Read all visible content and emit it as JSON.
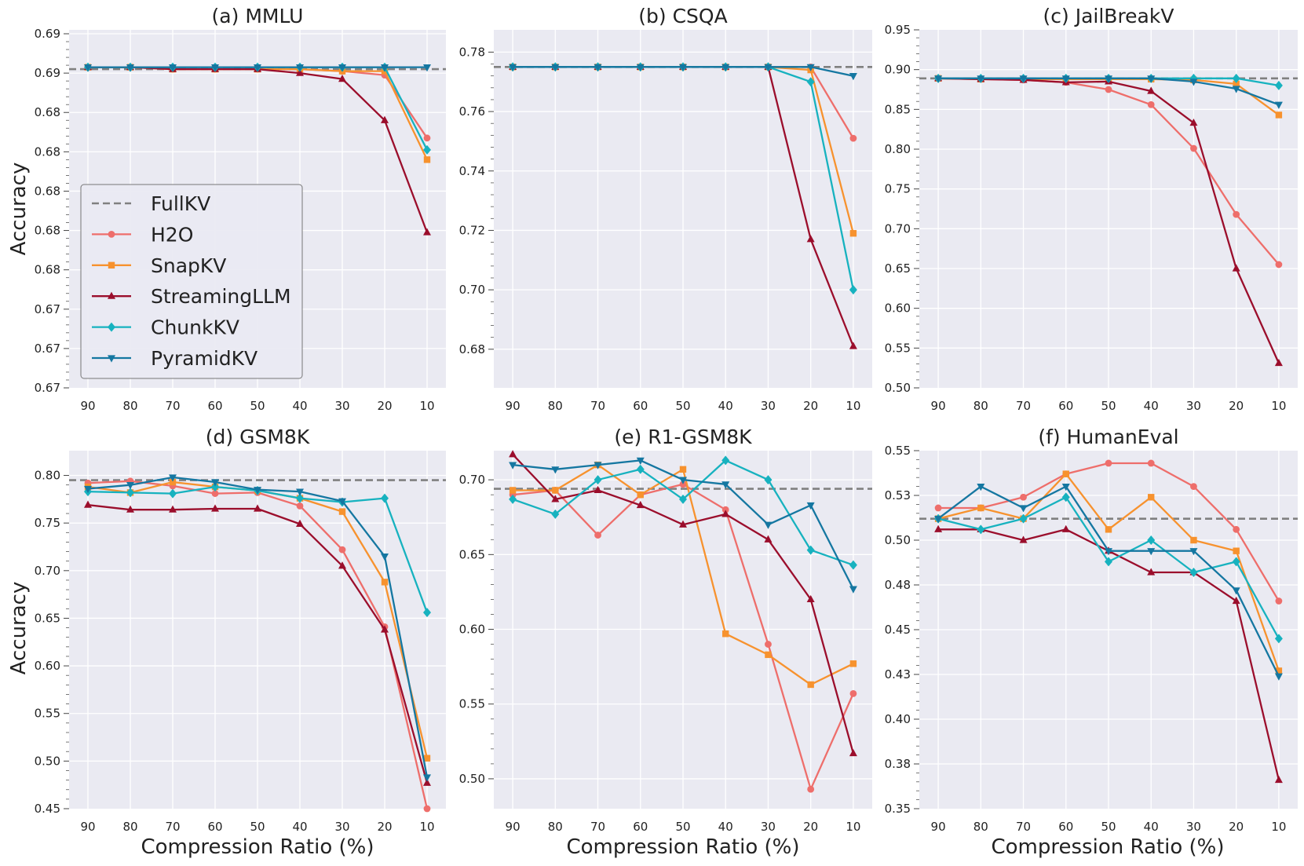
{
  "figure": {
    "ylabel": "Accuracy",
    "xlabel": "Compression Ratio (%)",
    "legend": {
      "location": "lower-left of panel (a)",
      "entries": [
        {
          "name": "FullKV",
          "color": "#808080",
          "marker": "none",
          "style": "dashed"
        },
        {
          "name": "H2O",
          "color": "#EE6E6B",
          "marker": "circle"
        },
        {
          "name": "SnapKV",
          "color": "#F7922E",
          "marker": "square"
        },
        {
          "name": "StreamingLLM",
          "color": "#9B0E2C",
          "marker": "triangle-up"
        },
        {
          "name": "ChunkKV",
          "color": "#17B2BF",
          "marker": "diamond"
        },
        {
          "name": "PyramidKV",
          "color": "#1577A1",
          "marker": "triangle-down"
        }
      ]
    },
    "background": "#EAEAF2"
  },
  "chart_data": [
    {
      "type": "line",
      "title": "(a) MMLU",
      "categories": [
        "90",
        "80",
        "70",
        "60",
        "50",
        "40",
        "30",
        "20",
        "10"
      ],
      "yticks": [
        0.67,
        0.672,
        0.674,
        0.676,
        0.678,
        0.68,
        0.682,
        0.684,
        0.686,
        0.688
      ],
      "ytick_labels": [
        "0.67",
        "0.67",
        "0.67",
        "0.68",
        "0.68",
        "0.68",
        "0.68",
        "0.68",
        "0.69",
        "0.69"
      ],
      "ylim": [
        0.67,
        0.6882
      ],
      "fullkv": 0.6862,
      "series": [
        {
          "name": "H2O",
          "values": [
            0.6863,
            0.6863,
            0.6862,
            0.6862,
            0.6862,
            0.6862,
            0.6861,
            0.6859,
            0.6827
          ]
        },
        {
          "name": "SnapKV",
          "values": [
            0.6863,
            0.6863,
            0.6862,
            0.6862,
            0.6862,
            0.6862,
            0.6861,
            0.6861,
            0.6816
          ]
        },
        {
          "name": "StreamingLLM",
          "values": [
            0.6863,
            0.6863,
            0.6862,
            0.6862,
            0.6862,
            0.686,
            0.6857,
            0.6836,
            0.6779
          ]
        },
        {
          "name": "ChunkKV",
          "values": [
            0.6863,
            0.6863,
            0.6863,
            0.6863,
            0.6863,
            0.6863,
            0.6863,
            0.6863,
            0.6821
          ]
        },
        {
          "name": "PyramidKV",
          "values": [
            0.6863,
            0.6863,
            0.6863,
            0.6863,
            0.6863,
            0.6863,
            0.6863,
            0.6863,
            0.6863
          ]
        }
      ]
    },
    {
      "type": "line",
      "title": "(b) CSQA",
      "categories": [
        "90",
        "80",
        "70",
        "60",
        "50",
        "40",
        "30",
        "20",
        "10"
      ],
      "yticks": [
        0.68,
        0.7,
        0.72,
        0.74,
        0.76,
        0.78
      ],
      "ytick_labels": [
        "0.68",
        "0.70",
        "0.72",
        "0.74",
        "0.76",
        "0.78"
      ],
      "ylim": [
        0.667,
        0.7875
      ],
      "fullkv": 0.775,
      "series": [
        {
          "name": "H2O",
          "values": [
            0.775,
            0.775,
            0.775,
            0.775,
            0.775,
            0.775,
            0.775,
            0.775,
            0.751
          ]
        },
        {
          "name": "SnapKV",
          "values": [
            0.775,
            0.775,
            0.775,
            0.775,
            0.775,
            0.775,
            0.775,
            0.774,
            0.719
          ]
        },
        {
          "name": "StreamingLLM",
          "values": [
            0.775,
            0.775,
            0.775,
            0.775,
            0.775,
            0.775,
            0.775,
            0.717,
            0.681
          ]
        },
        {
          "name": "ChunkKV",
          "values": [
            0.775,
            0.775,
            0.775,
            0.775,
            0.775,
            0.775,
            0.775,
            0.77,
            0.7
          ]
        },
        {
          "name": "PyramidKV",
          "values": [
            0.775,
            0.775,
            0.775,
            0.775,
            0.775,
            0.775,
            0.775,
            0.775,
            0.772
          ]
        }
      ]
    },
    {
      "type": "line",
      "title": "(c) JailBreakV",
      "categories": [
        "90",
        "80",
        "70",
        "60",
        "50",
        "40",
        "30",
        "20",
        "10"
      ],
      "yticks": [
        0.5,
        0.55,
        0.6,
        0.65,
        0.7,
        0.75,
        0.8,
        0.85,
        0.9,
        0.95
      ],
      "ytick_labels": [
        "0.50",
        "0.55",
        "0.60",
        "0.65",
        "0.70",
        "0.75",
        "0.80",
        "0.85",
        "0.90",
        "0.95"
      ],
      "ylim": [
        0.5,
        0.95
      ],
      "fullkv": 0.889,
      "series": [
        {
          "name": "H2O",
          "values": [
            0.889,
            0.888,
            0.887,
            0.884,
            0.875,
            0.856,
            0.801,
            0.718,
            0.655
          ]
        },
        {
          "name": "SnapKV",
          "values": [
            0.889,
            0.888,
            0.888,
            0.888,
            0.888,
            0.888,
            0.887,
            0.882,
            0.843
          ]
        },
        {
          "name": "StreamingLLM",
          "values": [
            0.889,
            0.888,
            0.887,
            0.884,
            0.885,
            0.873,
            0.833,
            0.65,
            0.531
          ]
        },
        {
          "name": "ChunkKV",
          "values": [
            0.889,
            0.889,
            0.889,
            0.889,
            0.889,
            0.889,
            0.889,
            0.889,
            0.88
          ]
        },
        {
          "name": "PyramidKV",
          "values": [
            0.889,
            0.889,
            0.889,
            0.889,
            0.889,
            0.889,
            0.885,
            0.876,
            0.856
          ]
        }
      ]
    },
    {
      "type": "line",
      "title": "(d) GSM8K",
      "categories": [
        "90",
        "80",
        "70",
        "60",
        "50",
        "40",
        "30",
        "20",
        "10"
      ],
      "yticks": [
        0.45,
        0.5,
        0.55,
        0.6,
        0.65,
        0.7,
        0.75,
        0.8
      ],
      "ytick_labels": [
        "0.45",
        "0.50",
        "0.55",
        "0.60",
        "0.65",
        "0.70",
        "0.75",
        "0.80"
      ],
      "ylim": [
        0.45,
        0.826
      ],
      "fullkv": 0.795,
      "series": [
        {
          "name": "H2O",
          "values": [
            0.792,
            0.794,
            0.789,
            0.781,
            0.782,
            0.768,
            0.722,
            0.641,
            0.45
          ]
        },
        {
          "name": "SnapKV",
          "values": [
            0.788,
            0.782,
            0.793,
            0.788,
            0.784,
            0.776,
            0.762,
            0.688,
            0.503
          ]
        },
        {
          "name": "StreamingLLM",
          "values": [
            0.769,
            0.764,
            0.764,
            0.765,
            0.765,
            0.749,
            0.705,
            0.638,
            0.477
          ]
        },
        {
          "name": "ChunkKV",
          "values": [
            0.783,
            0.782,
            0.781,
            0.788,
            0.784,
            0.776,
            0.772,
            0.776,
            0.656
          ]
        },
        {
          "name": "PyramidKV",
          "values": [
            0.786,
            0.79,
            0.798,
            0.793,
            0.785,
            0.783,
            0.773,
            0.715,
            0.483
          ]
        }
      ]
    },
    {
      "type": "line",
      "title": "(e) R1-GSM8K",
      "categories": [
        "90",
        "80",
        "70",
        "60",
        "50",
        "40",
        "30",
        "20",
        "10"
      ],
      "yticks": [
        0.5,
        0.55,
        0.6,
        0.65,
        0.7
      ],
      "ytick_labels": [
        "0.50",
        "0.55",
        "0.60",
        "0.65",
        "0.70"
      ],
      "ylim": [
        0.48,
        0.7195
      ],
      "fullkv": 0.694,
      "series": [
        {
          "name": "H2O",
          "values": [
            0.69,
            0.693,
            0.663,
            0.69,
            0.697,
            0.68,
            0.59,
            0.493,
            0.557
          ]
        },
        {
          "name": "SnapKV",
          "values": [
            0.693,
            0.693,
            0.71,
            0.69,
            0.707,
            0.597,
            0.583,
            0.563,
            0.577
          ]
        },
        {
          "name": "StreamingLLM",
          "values": [
            0.717,
            0.687,
            0.693,
            0.683,
            0.67,
            0.677,
            0.66,
            0.62,
            0.517
          ]
        },
        {
          "name": "ChunkKV",
          "values": [
            0.687,
            0.677,
            0.7,
            0.707,
            0.687,
            0.713,
            0.7,
            0.653,
            0.643
          ]
        },
        {
          "name": "PyramidKV",
          "values": [
            0.71,
            0.707,
            0.71,
            0.713,
            0.7,
            0.697,
            0.67,
            0.683,
            0.627
          ]
        }
      ]
    },
    {
      "type": "line",
      "title": "(f) HumanEval",
      "categories": [
        "90",
        "80",
        "70",
        "60",
        "50",
        "40",
        "30",
        "20",
        "10"
      ],
      "yticks": [
        0.35,
        0.375,
        0.4,
        0.425,
        0.45,
        0.475,
        0.5,
        0.525,
        0.55
      ],
      "ytick_labels": [
        "0.35",
        "0.38",
        "0.40",
        "0.43",
        "0.45",
        "0.48",
        "0.50",
        "0.53",
        "0.55"
      ],
      "ylim": [
        0.35,
        0.55
      ],
      "fullkv": 0.512,
      "series": [
        {
          "name": "H2O",
          "values": [
            0.518,
            0.518,
            0.524,
            0.537,
            0.543,
            0.543,
            0.53,
            0.506,
            0.466
          ]
        },
        {
          "name": "SnapKV",
          "values": [
            0.512,
            0.518,
            0.512,
            0.537,
            0.506,
            0.524,
            0.5,
            0.494,
            0.427
          ]
        },
        {
          "name": "StreamingLLM",
          "values": [
            0.506,
            0.506,
            0.5,
            0.506,
            0.494,
            0.482,
            0.482,
            0.466,
            0.366
          ]
        },
        {
          "name": "ChunkKV",
          "values": [
            0.512,
            0.506,
            0.512,
            0.524,
            0.488,
            0.5,
            0.482,
            0.488,
            0.445
          ]
        },
        {
          "name": "PyramidKV",
          "values": [
            0.512,
            0.53,
            0.518,
            0.53,
            0.494,
            0.494,
            0.494,
            0.472,
            0.424
          ]
        }
      ]
    }
  ]
}
